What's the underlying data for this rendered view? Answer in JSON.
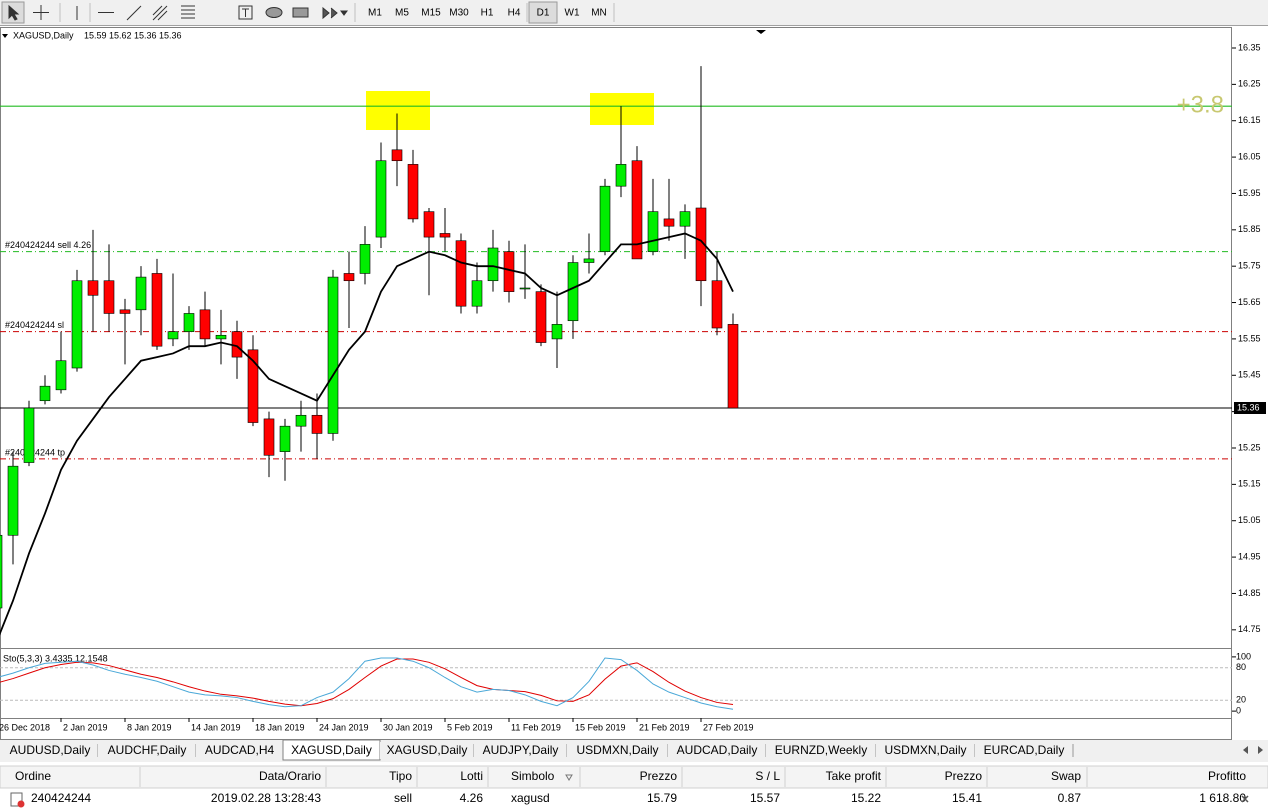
{
  "toolbar": {
    "timeframes": [
      "M1",
      "M5",
      "M15",
      "M30",
      "H1",
      "H4",
      "D1",
      "W1",
      "MN"
    ],
    "active_timeframe": "D1"
  },
  "chart_data": {
    "type": "candlestick",
    "title": "XAGUSD,Daily",
    "title_values": [
      15.59,
      15.62,
      15.36,
      15.36
    ],
    "categories": [
      "26 Dec 2018",
      null,
      null,
      null,
      "2 Jan 2019",
      null,
      null,
      null,
      "8 Jan 2019",
      null,
      null,
      null,
      "14 Jan 2019",
      null,
      null,
      null,
      "18 Jan 2019",
      null,
      null,
      null,
      "24 Jan 2019",
      null,
      null,
      null,
      "30 Jan 2019",
      null,
      null,
      null,
      "5 Feb 2019",
      null,
      null,
      null,
      "11 Feb 2019",
      null,
      null,
      null,
      "15 Feb 2019",
      null,
      null,
      null,
      "21 Feb 2019",
      null,
      null,
      null,
      "27 Feb 2019",
      null,
      null
    ],
    "open": [
      14.81,
      15.01,
      15.21,
      15.38,
      15.41,
      15.47,
      15.71,
      15.71,
      15.63,
      15.63,
      15.73,
      15.55,
      15.57,
      15.63,
      15.55,
      15.57,
      15.52,
      15.33,
      15.24,
      15.31,
      15.34,
      15.29,
      15.73,
      15.73,
      15.83,
      16.07,
      16.03,
      15.9,
      15.84,
      15.82,
      15.64,
      15.71,
      15.79,
      15.69,
      15.68,
      15.55,
      15.6,
      15.76,
      15.79,
      15.97,
      16.04,
      15.79,
      15.88,
      15.86,
      15.91,
      15.71,
      15.59
    ],
    "high": [
      15.01,
      15.24,
      15.38,
      15.45,
      15.57,
      15.74,
      15.85,
      15.81,
      15.66,
      15.75,
      15.77,
      15.73,
      15.64,
      15.68,
      15.63,
      15.6,
      15.56,
      15.35,
      15.33,
      15.38,
      15.4,
      15.74,
      15.79,
      15.86,
      16.09,
      16.17,
      16.07,
      15.91,
      15.91,
      15.84,
      15.76,
      15.85,
      15.82,
      15.81,
      15.7,
      15.68,
      15.78,
      15.84,
      15.99,
      16.19,
      16.08,
      15.99,
      15.99,
      15.92,
      16.3,
      15.79,
      15.62
    ],
    "low": [
      14.78,
      14.93,
      15.2,
      15.37,
      15.4,
      15.46,
      15.57,
      15.57,
      15.48,
      15.56,
      15.52,
      15.53,
      15.52,
      15.53,
      15.48,
      15.44,
      15.31,
      15.17,
      15.16,
      15.24,
      15.22,
      15.27,
      15.58,
      15.7,
      15.8,
      15.97,
      15.87,
      15.67,
      15.79,
      15.62,
      15.62,
      15.68,
      15.65,
      15.66,
      15.53,
      15.47,
      15.55,
      15.73,
      15.78,
      15.94,
      15.77,
      15.78,
      15.82,
      15.77,
      15.64,
      15.56,
      15.36
    ],
    "close": [
      15.01,
      15.2,
      15.36,
      15.42,
      15.49,
      15.71,
      15.67,
      15.62,
      15.62,
      15.72,
      15.53,
      15.57,
      15.62,
      15.55,
      15.56,
      15.5,
      15.32,
      15.23,
      15.31,
      15.34,
      15.29,
      15.72,
      15.71,
      15.81,
      16.04,
      16.04,
      15.88,
      15.83,
      15.83,
      15.64,
      15.71,
      15.8,
      15.68,
      15.69,
      15.54,
      15.59,
      15.76,
      15.77,
      15.97,
      16.03,
      15.77,
      15.9,
      15.86,
      15.9,
      15.71,
      15.58,
      15.36
    ],
    "up_color": "#00ee00",
    "down_color": "#ff0000",
    "ma": {
      "color": "#000000",
      "values": [
        14.72,
        14.83,
        14.96,
        15.07,
        15.19,
        15.27,
        15.33,
        15.39,
        15.44,
        15.49,
        15.5,
        15.51,
        15.53,
        15.53,
        15.54,
        15.53,
        15.49,
        15.44,
        15.42,
        15.4,
        15.38,
        15.45,
        15.52,
        15.57,
        15.68,
        15.75,
        15.77,
        15.79,
        15.78,
        15.76,
        15.75,
        15.75,
        15.74,
        15.73,
        15.69,
        15.67,
        15.69,
        15.71,
        15.76,
        15.81,
        15.81,
        15.82,
        15.83,
        15.84,
        15.82,
        15.77,
        15.68
      ]
    },
    "ylim": [
      14.7,
      16.405
    ],
    "yticks": [
      16.35,
      16.25,
      16.15,
      16.05,
      15.95,
      15.85,
      15.75,
      15.65,
      15.55,
      15.45,
      15.35,
      15.25,
      15.15,
      15.05,
      14.95,
      14.85,
      14.75
    ],
    "bid": 15.36,
    "levels": [
      {
        "value": 16.19,
        "color": "#22bb22",
        "style": "solid"
      },
      {
        "value": 15.79,
        "color": "#22bb22",
        "style": "dashdot",
        "label": "#240424244 sell 4.26"
      },
      {
        "value": 15.57,
        "color": "#cc0000",
        "style": "dashdot",
        "label": "#240424244 sl"
      },
      {
        "value": 15.22,
        "color": "#cc0000",
        "style": "dashdot",
        "label": "#240424244 tp"
      }
    ],
    "profit_label": "+3.8",
    "stochastic": {
      "label": "Sto(5,3,3) 3.4335 12.1548",
      "ylim": [
        -9,
        109
      ],
      "yticks": [
        0,
        20,
        80,
        100
      ],
      "main": {
        "color": "#4aa8d8",
        "values": [
          62,
          70,
          80,
          88,
          90,
          92,
          85,
          75,
          68,
          62,
          55,
          45,
          35,
          30,
          28,
          25,
          18,
          12,
          8,
          10,
          25,
          35,
          60,
          92,
          98,
          98,
          92,
          80,
          62,
          45,
          35,
          40,
          38,
          30,
          18,
          10,
          25,
          55,
          98,
          95,
          75,
          50,
          35,
          25,
          15,
          8,
          3.4335
        ]
      },
      "signal": {
        "color": "#e00000",
        "values": [
          52,
          60,
          70,
          80,
          86,
          90,
          89,
          84,
          76,
          68,
          62,
          54,
          45,
          37,
          31,
          28,
          24,
          18,
          13,
          10,
          14,
          23,
          40,
          62,
          83,
          96,
          96,
          90,
          78,
          62,
          47,
          40,
          38,
          36,
          29,
          19,
          18,
          30,
          59,
          83,
          89,
          73,
          53,
          37,
          25,
          16,
          12.1548
        ]
      }
    }
  },
  "tabs": {
    "items": [
      "AUDUSD,Daily",
      "AUDCHF,Daily",
      "AUDCAD,H4",
      "XAGUSD,Daily",
      "XAGUSD,Daily",
      "AUDJPY,Daily",
      "USDMXN,Daily",
      "AUDCAD,Daily",
      "EURNZD,Weekly",
      "USDMXN,Daily",
      "EURCAD,Daily"
    ],
    "active": 3
  },
  "table": {
    "columns": [
      "Ordine",
      "Data/Orario",
      "Tipo",
      "Lotti",
      "Simbolo",
      "Prezzo",
      "S / L",
      "Take profit",
      "Prezzo",
      "Swap",
      "Profitto"
    ],
    "rows": [
      [
        "240424244",
        "2019.02.28 13:28:43",
        "sell",
        "4.26",
        "xagusd",
        "15.79",
        "15.57",
        "15.22",
        "15.41",
        "0.87",
        "1 618.80"
      ]
    ]
  }
}
